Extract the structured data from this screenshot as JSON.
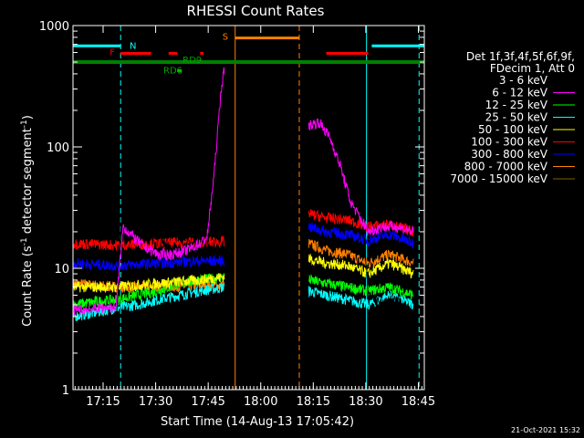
{
  "chart_data": {
    "type": "line",
    "title": "RHESSI Count Rates",
    "xlabel": "Start Time (14-Aug-13 17:05:42)",
    "ylabel_parts": [
      "Count Rate (s",
      "-1",
      " detector segment",
      "-1",
      ")"
    ],
    "y_scale": "log",
    "ylim": [
      1,
      1000
    ],
    "xlim_min": [
      5.7,
      106.0
    ],
    "x_ticks": [
      {
        "min": 14.3,
        "label": "17:15"
      },
      {
        "min": 29.3,
        "label": "17:30"
      },
      {
        "min": 44.3,
        "label": "17:45"
      },
      {
        "min": 59.3,
        "label": "18:00"
      },
      {
        "min": 74.3,
        "label": "18:15"
      },
      {
        "min": 89.3,
        "label": "18:30"
      },
      {
        "min": 104.3,
        "label": "18:45"
      }
    ],
    "y_ticks": [
      {
        "v": 1,
        "label": "1"
      },
      {
        "v": 10,
        "label": "10"
      },
      {
        "v": 100,
        "label": "100"
      },
      {
        "v": 1000,
        "label": "1000"
      }
    ],
    "legend_header": [
      "Det 1f,3f,4f,5f,6f,9f,",
      "FDecim 1, Att 0"
    ],
    "series": [
      {
        "name": "3 - 6 keV",
        "color": "#000000"
      },
      {
        "name": "6 - 12 keV",
        "color": "#ff00ff"
      },
      {
        "name": "12 - 25 keV",
        "color": "#00ff00"
      },
      {
        "name": "25 - 50 keV",
        "color": "#00ffff"
      },
      {
        "name": "50 - 100 keV",
        "color": "#ffff00"
      },
      {
        "name": "100 - 300 keV",
        "color": "#ff0000"
      },
      {
        "name": "300 - 800 keV",
        "color": "#0000ff"
      },
      {
        "name": "800 - 7000 keV",
        "color": "#ff8000"
      },
      {
        "name": "7000 - 15000 keV",
        "color": "#806000"
      }
    ],
    "series_values": {
      "3 - 6 keV": [
        [
          5.7,
          3
        ],
        [
          10,
          3.1
        ],
        [
          14,
          3
        ],
        [
          18,
          3
        ],
        [
          20,
          50
        ],
        [
          23,
          40
        ],
        [
          26,
          30
        ],
        [
          30,
          20
        ],
        [
          33,
          14
        ],
        [
          36,
          13
        ],
        [
          38,
          15
        ],
        [
          42,
          17
        ],
        [
          44,
          17
        ],
        [
          46,
          25
        ],
        [
          47,
          60
        ],
        [
          48,
          160
        ],
        [
          49,
          200
        ]
      ],
      "6 - 12 keV": [
        [
          5.7,
          4.5
        ],
        [
          18,
          4.8
        ],
        [
          20,
          22
        ],
        [
          23,
          18
        ],
        [
          26,
          15
        ],
        [
          30,
          13
        ],
        [
          34,
          13
        ],
        [
          38,
          14
        ],
        [
          42,
          16
        ],
        [
          44,
          18
        ],
        [
          46,
          60
        ],
        [
          48,
          300
        ],
        [
          49,
          450
        ]
      ],
      "12 - 25 keV": [
        [
          5.7,
          5
        ],
        [
          12,
          5.3
        ],
        [
          18,
          5.5
        ],
        [
          24,
          6
        ],
        [
          30,
          6.5
        ],
        [
          36,
          7.5
        ],
        [
          42,
          8
        ],
        [
          49,
          8.5
        ]
      ],
      "25 - 50 keV": [
        [
          5.7,
          4
        ],
        [
          12,
          4.3
        ],
        [
          18,
          4.7
        ],
        [
          24,
          5
        ],
        [
          30,
          5.5
        ],
        [
          36,
          6
        ],
        [
          42,
          6.5
        ],
        [
          49,
          7
        ]
      ],
      "50 - 100 keV": [
        [
          5.7,
          7
        ],
        [
          18,
          7
        ],
        [
          30,
          7.5
        ],
        [
          42,
          8
        ],
        [
          49,
          8.5
        ]
      ],
      "100 - 300 keV": [
        [
          5.7,
          16
        ],
        [
          18,
          15.5
        ],
        [
          30,
          16
        ],
        [
          42,
          16.5
        ],
        [
          49,
          16.5
        ]
      ],
      "300 - 800 keV": [
        [
          5.7,
          11
        ],
        [
          18,
          10.5
        ],
        [
          30,
          11
        ],
        [
          42,
          11.5
        ],
        [
          49,
          11.5
        ]
      ],
      "800 - 7000 keV": [
        [
          5.7,
          7.5
        ],
        [
          18,
          7
        ],
        [
          30,
          7
        ],
        [
          42,
          7.2
        ],
        [
          49,
          7.2
        ]
      ]
    },
    "series_values_after": {
      "3 - 6 keV": [
        [
          73,
          150
        ],
        [
          76,
          180
        ],
        [
          79,
          140
        ],
        [
          82,
          90
        ],
        [
          85,
          60
        ],
        [
          88,
          35
        ],
        [
          90,
          6
        ],
        [
          94,
          5
        ],
        [
          97,
          5.5
        ],
        [
          100,
          5
        ],
        [
          103,
          4
        ]
      ],
      "6 - 12 keV": [
        [
          73,
          150
        ],
        [
          76,
          160
        ],
        [
          79,
          120
        ],
        [
          82,
          70
        ],
        [
          85,
          35
        ],
        [
          88,
          25
        ],
        [
          90,
          20
        ],
        [
          94,
          22
        ],
        [
          98,
          22
        ],
        [
          103,
          20
        ]
      ],
      "12 - 25 keV": [
        [
          73,
          8
        ],
        [
          78,
          7.5
        ],
        [
          84,
          7
        ],
        [
          90,
          6.5
        ],
        [
          96,
          7
        ],
        [
          103,
          6
        ]
      ],
      "25 - 50 keV": [
        [
          73,
          6.5
        ],
        [
          78,
          6
        ],
        [
          84,
          5.5
        ],
        [
          90,
          5
        ],
        [
          96,
          6
        ],
        [
          103,
          5
        ]
      ],
      "50 - 100 keV": [
        [
          73,
          12
        ],
        [
          78,
          11
        ],
        [
          84,
          10.5
        ],
        [
          90,
          9
        ],
        [
          96,
          11
        ],
        [
          103,
          9
        ]
      ],
      "100 - 300 keV": [
        [
          73,
          28
        ],
        [
          78,
          26
        ],
        [
          84,
          25
        ],
        [
          90,
          22
        ],
        [
          96,
          23
        ],
        [
          103,
          20
        ]
      ],
      "300 - 800 keV": [
        [
          73,
          22
        ],
        [
          78,
          20
        ],
        [
          84,
          19
        ],
        [
          90,
          17
        ],
        [
          96,
          19
        ],
        [
          103,
          16
        ]
      ],
      "800 - 7000 keV": [
        [
          73,
          16
        ],
        [
          78,
          14
        ],
        [
          84,
          13
        ],
        [
          90,
          11
        ],
        [
          96,
          13
        ],
        [
          103,
          11
        ]
      ]
    },
    "markers": {
      "green_line_level": 500,
      "cyan_N": {
        "label": "N",
        "ranges": [
          [
            5.7,
            19.3
          ],
          [
            91.0,
            106.0
          ]
        ],
        "level": 680
      },
      "red_F": {
        "label": "F",
        "ranges": [
          [
            19.3,
            28.0
          ],
          [
            33.0,
            35.5
          ],
          [
            42.0,
            43.0
          ],
          [
            78.0,
            90.0
          ]
        ],
        "level": 590
      },
      "orange_S": {
        "label": "S",
        "ranges": [
          [
            52.0,
            70.3
          ]
        ],
        "level": 790
      },
      "rd_labels": [
        {
          "label": "RD9",
          "min": 37.0,
          "level": 520
        },
        {
          "label": "RD6",
          "min": 31.5,
          "level": 425
        }
      ]
    },
    "vlines": [
      {
        "min": 5.7,
        "color": "#00ffff",
        "style": "solid"
      },
      {
        "min": 19.3,
        "color": "#00ffff",
        "style": "dashed"
      },
      {
        "min": 52.0,
        "color": "#ff8000",
        "style": "solid"
      },
      {
        "min": 70.3,
        "color": "#ff8000",
        "style": "dashed"
      },
      {
        "min": 89.5,
        "color": "#00ffff",
        "style": "solid"
      },
      {
        "min": 104.5,
        "color": "#00ffff",
        "style": "dashed"
      }
    ],
    "footer_timestamp": "21-Oct-2021 15:32"
  }
}
